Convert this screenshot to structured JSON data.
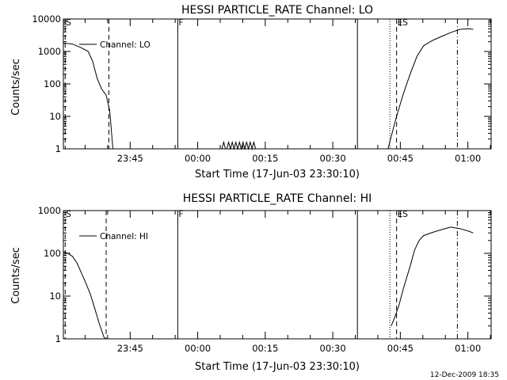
{
  "footer": {
    "timestamp": "12-Dec-2009 18:35"
  },
  "chart_data": [
    {
      "type": "line",
      "title": "HESSI PARTICLE_RATE Channel: LO",
      "xlabel": "Start Time (17-Jun-03 23:30:10)",
      "ylabel": "Counts/sec",
      "yscale": "log",
      "ylim": [
        1,
        10000
      ],
      "xlim": [
        0,
        95
      ],
      "x_units": "minutes after 23:30:10",
      "y_ticks": [
        {
          "v": 1,
          "label": "1"
        },
        {
          "v": 10,
          "label": "10"
        },
        {
          "v": 100,
          "label": "100"
        },
        {
          "v": 1000,
          "label": "1000"
        },
        {
          "v": 10000,
          "label": "10000"
        }
      ],
      "x_ticks": [
        {
          "v": 14.83,
          "label": "23:45"
        },
        {
          "v": 29.83,
          "label": "00:00"
        },
        {
          "v": 44.83,
          "label": "00:15"
        },
        {
          "v": 59.83,
          "label": "00:30"
        },
        {
          "v": 74.83,
          "label": "00:45"
        },
        {
          "v": 89.83,
          "label": "01:00"
        }
      ],
      "legend": {
        "label": "Channel: LO",
        "placement": "top-left"
      },
      "markers": [
        {
          "x": 0.4,
          "style": "dashed",
          "label": "S"
        },
        {
          "x": 10.1,
          "style": "dashed",
          "label": ""
        },
        {
          "x": 25.4,
          "style": "solid",
          "label": "F"
        },
        {
          "x": 65.3,
          "style": "solid",
          "label": ""
        },
        {
          "x": 72.5,
          "style": "dotted",
          "label": ""
        },
        {
          "x": 74.0,
          "style": "dashed",
          "label": "ES"
        },
        {
          "x": 87.5,
          "style": "dashdot",
          "label": ""
        }
      ],
      "series": [
        {
          "segments": [
            [
              [
                0,
                1800
              ],
              [
                2,
                1700
              ],
              [
                4,
                1300
              ],
              [
                5.5,
                1000
              ],
              [
                6.5,
                500
              ],
              [
                7.5,
                150
              ],
              [
                8.5,
                70
              ],
              [
                9.5,
                45
              ],
              [
                10.3,
                15
              ],
              [
                11,
                1
              ]
            ],
            [
              [
                35.2,
                1
              ],
              [
                35.6,
                1.6
              ],
              [
                36,
                1
              ],
              [
                36.3,
                1
              ],
              [
                36.7,
                1.6
              ],
              [
                37.1,
                1
              ],
              [
                37.5,
                1.6
              ],
              [
                37.9,
                1
              ],
              [
                38.3,
                1.6
              ],
              [
                38.7,
                1
              ],
              [
                39.1,
                1.6
              ],
              [
                39.5,
                1
              ],
              [
                39.9,
                1.6
              ],
              [
                40.3,
                1
              ],
              [
                40.7,
                1.6
              ],
              [
                41.1,
                1
              ],
              [
                41.5,
                1.6
              ],
              [
                41.9,
                1
              ],
              [
                42.3,
                1.6
              ],
              [
                42.7,
                1
              ]
            ],
            [
              [
                72.1,
                1
              ],
              [
                73,
                3
              ],
              [
                74,
                10
              ],
              [
                75.5,
                50
              ],
              [
                77,
                200
              ],
              [
                78.5,
                700
              ],
              [
                80,
                1500
              ],
              [
                82,
                2200
              ],
              [
                84,
                2900
              ],
              [
                86,
                3800
              ],
              [
                88,
                4800
              ],
              [
                90,
                5000
              ],
              [
                91,
                4800
              ]
            ]
          ]
        }
      ]
    },
    {
      "type": "line",
      "title": "HESSI PARTICLE_RATE Channel: HI",
      "xlabel": "Start Time (17-Jun-03 23:30:10)",
      "ylabel": "Counts/sec",
      "yscale": "log",
      "ylim": [
        1,
        1000
      ],
      "xlim": [
        0,
        95
      ],
      "x_units": "minutes after 23:30:10",
      "y_ticks": [
        {
          "v": 1,
          "label": "1"
        },
        {
          "v": 10,
          "label": "10"
        },
        {
          "v": 100,
          "label": "100"
        },
        {
          "v": 1000,
          "label": "1000"
        }
      ],
      "x_ticks": [
        {
          "v": 14.83,
          "label": "23:45"
        },
        {
          "v": 29.83,
          "label": "00:00"
        },
        {
          "v": 44.83,
          "label": "00:15"
        },
        {
          "v": 59.83,
          "label": "00:30"
        },
        {
          "v": 74.83,
          "label": "00:45"
        },
        {
          "v": 89.83,
          "label": "01:00"
        }
      ],
      "legend": {
        "label": "Channel: HI",
        "placement": "top-left"
      },
      "markers": [
        {
          "x": 0.4,
          "style": "dashed",
          "label": "S"
        },
        {
          "x": 9.5,
          "style": "dashed",
          "label": ""
        },
        {
          "x": 25.4,
          "style": "solid",
          "label": "F"
        },
        {
          "x": 65.3,
          "style": "solid",
          "label": ""
        },
        {
          "x": 72.5,
          "style": "dotted",
          "label": ""
        },
        {
          "x": 74.0,
          "style": "dashed",
          "label": "ES"
        },
        {
          "x": 87.5,
          "style": "dashdot",
          "label": ""
        }
      ],
      "series": [
        {
          "segments": [
            [
              [
                0,
                110
              ],
              [
                1,
                100
              ],
              [
                2,
                85
              ],
              [
                3,
                60
              ],
              [
                4,
                35
              ],
              [
                5,
                20
              ],
              [
                6,
                11
              ],
              [
                7,
                5
              ],
              [
                8,
                2.2
              ],
              [
                9,
                1.1
              ],
              [
                9.3,
                1
              ]
            ],
            [
              [
                72.8,
                2
              ],
              [
                73.5,
                3
              ],
              [
                74.5,
                6
              ],
              [
                75.5,
                15
              ],
              [
                77,
                50
              ],
              [
                78,
                120
              ],
              [
                79,
                200
              ],
              [
                80,
                260
              ],
              [
                82,
                310
              ],
              [
                84,
                360
              ],
              [
                86,
                410
              ],
              [
                88,
                380
              ],
              [
                90,
                330
              ],
              [
                91,
                300
              ]
            ]
          ]
        }
      ]
    }
  ]
}
